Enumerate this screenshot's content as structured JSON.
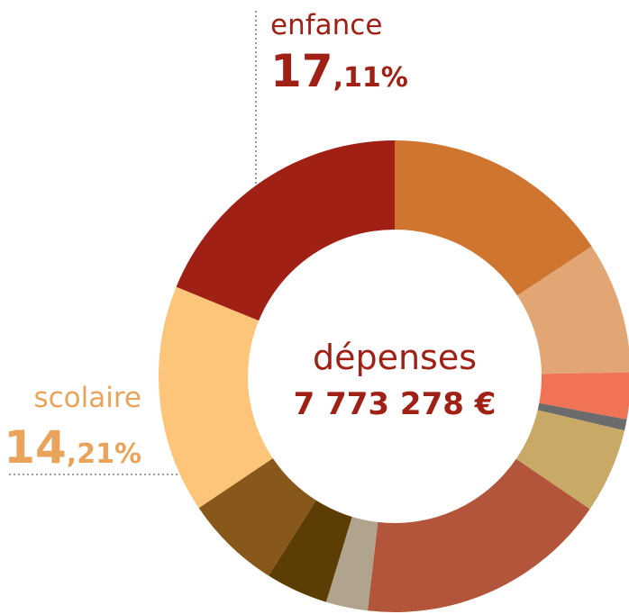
{
  "chart_data": {
    "type": "donut",
    "center_title": "dépenses",
    "center_value": "7 773 278 €",
    "categories": [
      null,
      null,
      null,
      null,
      null,
      null,
      null,
      null,
      null,
      "scolaire",
      "enfance"
    ],
    "values": [
      14.3,
      8.2,
      2.9,
      0.7,
      5.3,
      15.75,
      2.6,
      3.9,
      6.0,
      14.21,
      17.11
    ],
    "value_labels": [
      null,
      null,
      null,
      null,
      null,
      null,
      null,
      null,
      null,
      "14,21%",
      "17,11%"
    ],
    "colors": [
      "#cf7530",
      "#e2a574",
      "#f07355",
      "#6b6b6b",
      "#c8a966",
      "#b3553a",
      "#b0a48e",
      "#5c3d03",
      "#87581a",
      "#fdc57a",
      "#a02015"
    ]
  }
}
